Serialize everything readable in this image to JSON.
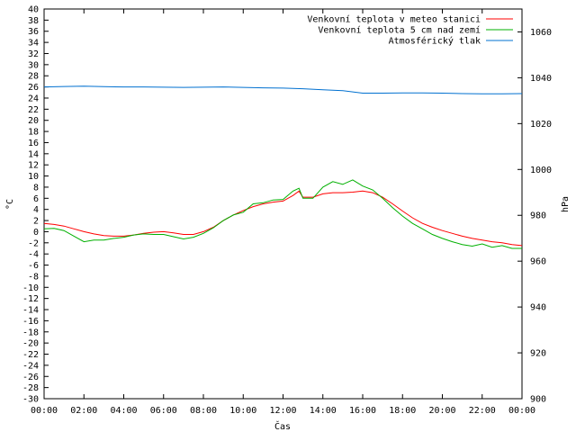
{
  "chart_data": {
    "type": "line",
    "xlabel": "Čas",
    "ylabel_left": "°C",
    "ylabel_right": "hPa",
    "x_ticks": [
      "00:00",
      "02:00",
      "04:00",
      "06:00",
      "08:00",
      "10:00",
      "12:00",
      "14:00",
      "16:00",
      "18:00",
      "20:00",
      "22:00",
      "00:00"
    ],
    "x_range_hours": [
      0,
      24
    ],
    "y_left_range": [
      -30,
      40
    ],
    "y_left_step": 2,
    "y_right_range": [
      900,
      1070
    ],
    "y_right_ticks": [
      900,
      920,
      940,
      960,
      980,
      1000,
      1020,
      1040,
      1060
    ],
    "grid": false,
    "legend_position": "top-right",
    "series": [
      {
        "name": "Venkovní teplota v meteo stanici",
        "axis": "left",
        "color": "#ff0000",
        "x": [
          0,
          0.5,
          1,
          1.5,
          2,
          2.5,
          3,
          3.5,
          4,
          4.5,
          5,
          5.5,
          6,
          6.5,
          7,
          7.5,
          8,
          8.5,
          9,
          9.5,
          10,
          10.5,
          11,
          11.5,
          12,
          12.5,
          12.8,
          13,
          13.5,
          14,
          14.5,
          15,
          15.5,
          16,
          16.5,
          17,
          17.5,
          18,
          18.5,
          19,
          19.5,
          20,
          20.5,
          21,
          21.5,
          22,
          22.5,
          23,
          23.5,
          24
        ],
        "values": [
          1.5,
          1.3,
          1.0,
          0.5,
          0.0,
          -0.4,
          -0.7,
          -0.8,
          -0.8,
          -0.6,
          -0.3,
          -0.1,
          0.0,
          -0.2,
          -0.5,
          -0.5,
          0.0,
          0.8,
          2.0,
          3.0,
          3.8,
          4.5,
          5.0,
          5.3,
          5.5,
          6.5,
          7.3,
          6.2,
          6.2,
          6.8,
          7.0,
          7.0,
          7.1,
          7.3,
          7.0,
          6.2,
          5.0,
          3.7,
          2.5,
          1.5,
          0.8,
          0.2,
          -0.3,
          -0.8,
          -1.2,
          -1.5,
          -1.8,
          -2.0,
          -2.3,
          -2.5
        ]
      },
      {
        "name": "Venkovní teplota 5 cm nad zemí",
        "axis": "left",
        "color": "#00b000",
        "x": [
          0,
          0.5,
          1,
          1.5,
          2,
          2.5,
          3,
          3.5,
          4,
          4.5,
          5,
          5.5,
          6,
          6.5,
          7,
          7.5,
          8,
          8.5,
          9,
          9.5,
          10,
          10.5,
          11,
          11.5,
          12,
          12.5,
          12.8,
          13,
          13.5,
          14,
          14.5,
          15,
          15.5,
          16,
          16.5,
          17,
          17.5,
          18,
          18.5,
          19,
          19.5,
          20,
          20.5,
          21,
          21.5,
          22,
          22.5,
          23,
          23.5,
          24
        ],
        "values": [
          0.5,
          0.6,
          0.2,
          -0.8,
          -1.8,
          -1.5,
          -1.5,
          -1.2,
          -1.0,
          -0.6,
          -0.4,
          -0.5,
          -0.5,
          -0.9,
          -1.3,
          -1.0,
          -0.3,
          0.7,
          2.0,
          3.0,
          3.5,
          5.0,
          5.2,
          5.7,
          5.8,
          7.3,
          7.8,
          6.0,
          6.0,
          8.0,
          9.0,
          8.5,
          9.3,
          8.2,
          7.5,
          6.0,
          4.3,
          2.8,
          1.5,
          0.5,
          -0.5,
          -1.2,
          -1.8,
          -2.3,
          -2.6,
          -2.2,
          -2.8,
          -2.5,
          -3.0,
          -3.0
        ]
      },
      {
        "name": "Atmosférický tlak",
        "axis": "right",
        "color": "#0070d0",
        "x": [
          0,
          1,
          2,
          3,
          4,
          5,
          6,
          7,
          8,
          9,
          10,
          11,
          12,
          13,
          14,
          15,
          16,
          17,
          18,
          19,
          20,
          21,
          22,
          23,
          24
        ],
        "values": [
          1036.0,
          1036.2,
          1036.3,
          1036.1,
          1036.0,
          1036.0,
          1035.9,
          1035.8,
          1035.9,
          1036.0,
          1035.8,
          1035.6,
          1035.5,
          1035.2,
          1034.8,
          1034.4,
          1033.3,
          1033.3,
          1033.4,
          1033.4,
          1033.3,
          1033.1,
          1033.0,
          1033.0,
          1033.1
        ]
      }
    ]
  }
}
